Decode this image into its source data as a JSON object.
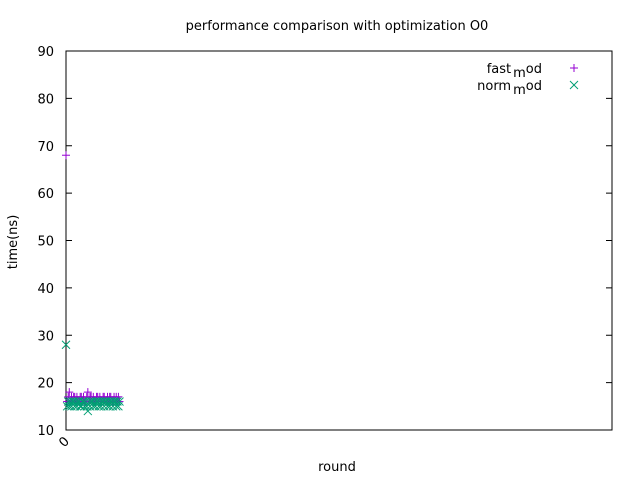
{
  "chart_data": {
    "type": "scatter",
    "title": "performance comparison with optimization O0",
    "xlabel": "round",
    "ylabel": "time(ns)",
    "xlim": [
      0,
      1000
    ],
    "ylim": [
      10,
      90
    ],
    "x_ticks": [
      "0"
    ],
    "y_ticks": [
      "10",
      "20",
      "30",
      "40",
      "50",
      "60",
      "70",
      "80",
      "90"
    ],
    "legend_position": "top-right",
    "grid": false,
    "series": [
      {
        "name": "fast_mod",
        "legend_label_main": "fast",
        "legend_label_sub": "m",
        "legend_label_tail": "od",
        "marker": "plus",
        "color": "#9400d3",
        "x": [
          0,
          2,
          4,
          6,
          8,
          10,
          12,
          14,
          16,
          18,
          20,
          22,
          24,
          26,
          28,
          30,
          32,
          34,
          36,
          38,
          40,
          42,
          44,
          46,
          48,
          50,
          52,
          54,
          56,
          58,
          60,
          62,
          64,
          66,
          68,
          70,
          72,
          74,
          76,
          78,
          80,
          82,
          84,
          86,
          88,
          90,
          92,
          94,
          96,
          98
        ],
        "y": [
          68,
          16,
          17,
          18,
          16,
          17,
          16,
          17,
          17,
          16,
          17,
          16,
          16,
          17,
          17,
          16,
          17,
          16,
          16,
          17,
          18,
          16,
          17,
          17,
          16,
          17,
          16,
          16,
          17,
          17,
          16,
          17,
          16,
          16,
          17,
          17,
          16,
          16,
          17,
          16,
          17,
          17,
          16,
          16,
          17,
          16,
          17,
          16,
          17,
          16
        ]
      },
      {
        "name": "norm_mod",
        "legend_label_main": "norm",
        "legend_label_sub": "m",
        "legend_label_tail": "od",
        "marker": "cross",
        "color": "#009e73",
        "x": [
          0,
          2,
          4,
          6,
          8,
          10,
          12,
          14,
          16,
          18,
          20,
          22,
          24,
          26,
          28,
          30,
          32,
          34,
          36,
          38,
          40,
          42,
          44,
          46,
          48,
          50,
          52,
          54,
          56,
          58,
          60,
          62,
          64,
          66,
          68,
          70,
          72,
          74,
          76,
          78,
          80,
          82,
          84,
          86,
          88,
          90,
          92,
          94,
          96,
          98
        ],
        "y": [
          28,
          15,
          16,
          15,
          16,
          15,
          16,
          16,
          15,
          16,
          15,
          16,
          16,
          15,
          15,
          16,
          16,
          15,
          16,
          15,
          14,
          16,
          15,
          16,
          16,
          15,
          16,
          15,
          16,
          16,
          15,
          16,
          15,
          16,
          16,
          15,
          16,
          16,
          15,
          16,
          15,
          16,
          16,
          15,
          16,
          16,
          15,
          16,
          15,
          16
        ]
      }
    ]
  }
}
